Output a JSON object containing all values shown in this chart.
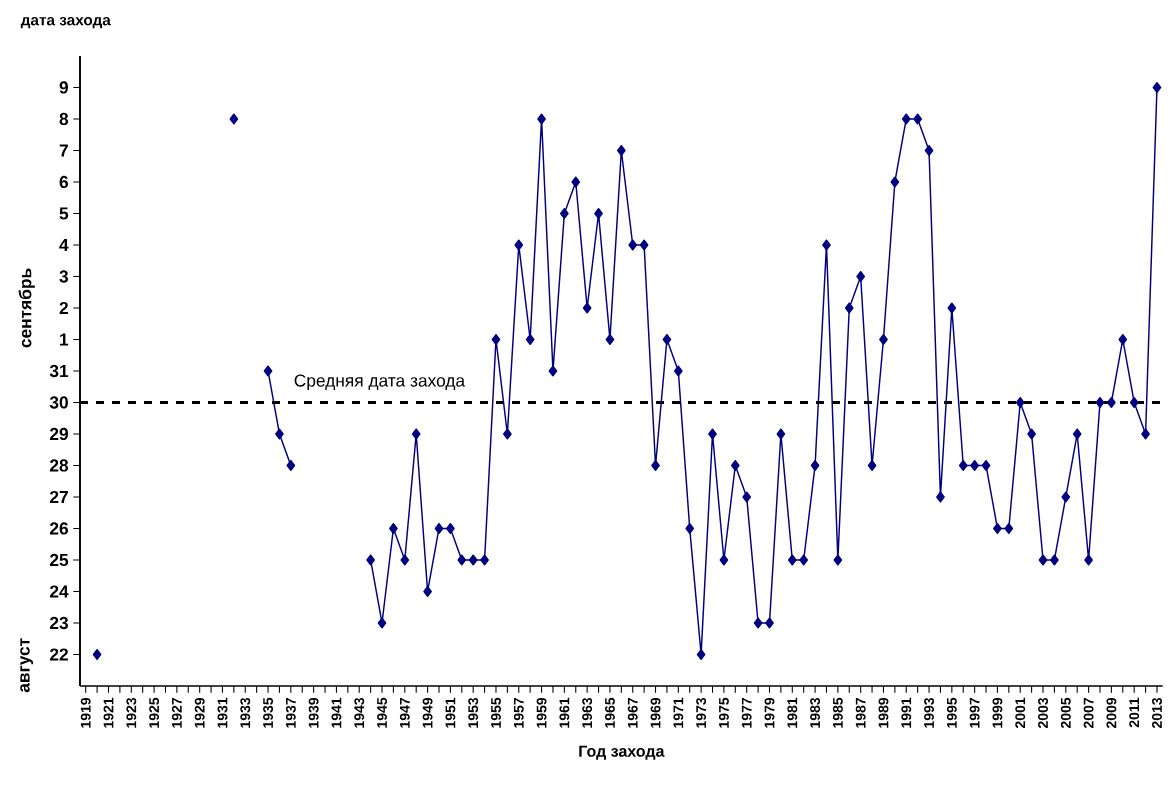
{
  "chart_data": {
    "type": "line",
    "xlabel": "Год захода",
    "title": "дата захода",
    "annotations": [
      "август",
      "сентябрь"
    ],
    "x": [
      1920,
      1921,
      1922,
      1923,
      1924,
      1925,
      1926,
      1927,
      1928,
      1929,
      1930,
      1931,
      1932,
      1933,
      1934,
      1935,
      1936,
      1937,
      1938,
      1939,
      1940,
      1941,
      1942,
      1943,
      1944,
      1945,
      1946,
      1947,
      1948,
      1949,
      1950,
      1951,
      1952,
      1953,
      1954,
      1955,
      1956,
      1957,
      1958,
      1959,
      1960,
      1961,
      1962,
      1963,
      1964,
      1965,
      1966,
      1967,
      1968,
      1969,
      1970,
      1971,
      1972,
      1973,
      1974,
      1975,
      1976,
      1977,
      1978,
      1979,
      1980,
      1981,
      1982,
      1983,
      1984,
      1985,
      1986,
      1987,
      1988,
      1989,
      1990,
      1991,
      1992,
      1993,
      1994,
      1995,
      1996,
      1997,
      1998,
      1999,
      2000,
      2001,
      2002,
      2003,
      2004,
      2005,
      2006,
      2007,
      2008,
      2009,
      2010,
      2011,
      2012,
      2013
    ],
    "series": [
      {
        "color": "#000080",
        "values": [
          22,
          null,
          null,
          null,
          null,
          null,
          null,
          null,
          null,
          null,
          null,
          null,
          39,
          null,
          null,
          31,
          29,
          28,
          null,
          null,
          null,
          null,
          null,
          null,
          25,
          23,
          26,
          25,
          29,
          24,
          26,
          26,
          25,
          25,
          25,
          32,
          29,
          35,
          32,
          39,
          31,
          36,
          37,
          33,
          36,
          32,
          38,
          35,
          35,
          28,
          32,
          31,
          26,
          22,
          29,
          25,
          28,
          27,
          23,
          23,
          29,
          25,
          25,
          28,
          35,
          25,
          33,
          34,
          28,
          32,
          37,
          39,
          39,
          38,
          27,
          33,
          28,
          28,
          28,
          26,
          26,
          30,
          29,
          25,
          25,
          27,
          29,
          25,
          30,
          30,
          32,
          30,
          29,
          40
        ]
      }
    ],
    "marker": "diamond",
    "line_style": "solid",
    "xlim": [
      1918.5,
      2013.5
    ],
    "ylim": [
      21,
      41
    ],
    "xticks": [
      1919,
      {
        "value": 1920,
        "label": null
      },
      1921,
      {
        "value": 1922,
        "label": null
      },
      1923,
      {
        "value": 1924,
        "label": null
      },
      1925,
      {
        "value": 1926,
        "label": null
      },
      1927,
      {
        "value": 1928,
        "label": null
      },
      1929,
      {
        "value": 1930,
        "label": null
      },
      1931,
      {
        "value": 1932,
        "label": null
      },
      1933,
      {
        "value": 1934,
        "label": null
      },
      1935,
      {
        "value": 1936,
        "label": null
      },
      1937,
      {
        "value": 1938,
        "label": null
      },
      1939,
      {
        "value": 1940,
        "label": null
      },
      1941,
      {
        "value": 1942,
        "label": null
      },
      1943,
      {
        "value": 1944,
        "label": null
      },
      1945,
      {
        "value": 1946,
        "label": null
      },
      1947,
      {
        "value": 1948,
        "label": null
      },
      1949,
      {
        "value": 1950,
        "label": null
      },
      1951,
      {
        "value": 1952,
        "label": null
      },
      1953,
      {
        "value": 1954,
        "label": null
      },
      1955,
      {
        "value": 1956,
        "label": null
      },
      1957,
      {
        "value": 1958,
        "label": null
      },
      1959,
      {
        "value": 1960,
        "label": null
      },
      1961,
      {
        "value": 1962,
        "label": null
      },
      1963,
      {
        "value": 1964,
        "label": null
      },
      1965,
      {
        "value": 1966,
        "label": null
      },
      1967,
      {
        "value": 1968,
        "label": null
      },
      1969,
      {
        "value": 1970,
        "label": null
      },
      1971,
      {
        "value": 1972,
        "label": null
      },
      1973,
      {
        "value": 1974,
        "label": null
      },
      1975,
      {
        "value": 1976,
        "label": null
      },
      1977,
      {
        "value": 1978,
        "label": null
      },
      1979,
      {
        "value": 1980,
        "label": null
      },
      1981,
      {
        "value": 1982,
        "label": null
      },
      1983,
      {
        "value": 1984,
        "label": null
      },
      1985,
      {
        "value": 1986,
        "label": null
      },
      1987,
      {
        "value": 1988,
        "label": null
      },
      1989,
      {
        "value": 1990,
        "label": null
      },
      1991,
      {
        "value": 1992,
        "label": null
      },
      1993,
      {
        "value": 1994,
        "label": null
      },
      1995,
      {
        "value": 1996,
        "label": null
      },
      1997,
      {
        "value": 1998,
        "label": null
      },
      1999,
      {
        "value": 2000,
        "label": null
      },
      2001,
      {
        "value": 2002,
        "label": null
      },
      2003,
      {
        "value": 2004,
        "label": null
      },
      2005,
      {
        "value": 2006,
        "label": null
      },
      2007,
      {
        "value": 2008,
        "label": null
      },
      2009,
      {
        "value": 2010,
        "label": null
      },
      2011,
      {
        "value": 2012,
        "label": null
      },
      2013
    ],
    "yticks": [
      22,
      23,
      24,
      25,
      26,
      27,
      28,
      29,
      30,
      31
    ],
    "y2lim": [
      -10,
      10
    ],
    "y2ticks": [
      1,
      2,
      3,
      4,
      5,
      6,
      7,
      8,
      9
    ],
    "ref_lines": [
      {
        "axis": "y",
        "value": 30,
        "label": "Средняя дата захода",
        "color": "#000000",
        "line_style": "dashed"
      }
    ]
  }
}
